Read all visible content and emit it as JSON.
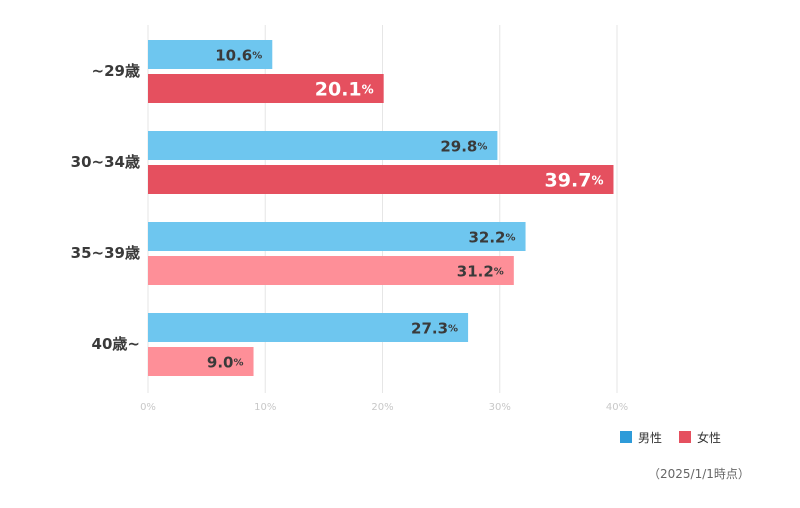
{
  "chart_data": {
    "type": "bar",
    "orientation": "horizontal",
    "categories": [
      "~29歳",
      "30~34歳",
      "35~39歳",
      "40歳~"
    ],
    "series": [
      {
        "name": "男性",
        "values": [
          10.6,
          29.8,
          32.2,
          27.3
        ]
      },
      {
        "name": "女性",
        "values": [
          20.1,
          39.7,
          31.2,
          9.0
        ]
      }
    ],
    "data_labels": {
      "男性": [
        "10.6",
        "29.8",
        "32.2",
        "27.3"
      ],
      "女性": [
        "20.1",
        "39.7",
        "31.2",
        "9.0"
      ]
    },
    "value_suffix": "%",
    "xlim": [
      0,
      40
    ],
    "ticks": [
      0,
      10,
      20,
      30,
      40
    ],
    "tick_labels": [
      "0%",
      "10%",
      "20%",
      "30%",
      "40%"
    ],
    "grid": true,
    "legend_position": "bottom-right",
    "colors": {
      "male": "#6ec6ef",
      "female_dark": "#e5505f",
      "female_light": "#fe8f98",
      "legend_male": "#2e9bd9",
      "legend_female": "#e5505f",
      "grid": "#e6e6e6",
      "tick_text": "#c8c8c8"
    },
    "female_dark_categories": [
      0,
      1
    ]
  },
  "legend": {
    "male": "男性",
    "female": "女性"
  },
  "note": "（2025/1/1時点）"
}
